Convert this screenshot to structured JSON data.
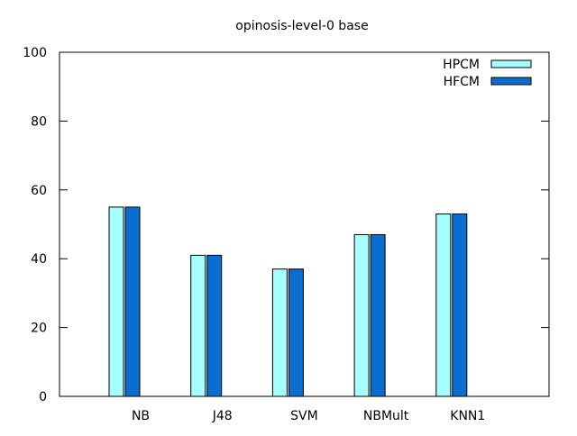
{
  "chart_data": {
    "type": "bar",
    "title": "opinosis-level-0 base",
    "xlabel": "",
    "ylabel": "",
    "categories": [
      "NB",
      "J48",
      "SVM",
      "NBMult",
      "KNN1"
    ],
    "series": [
      {
        "name": "HPCM",
        "values": [
          55,
          41,
          37,
          47,
          53
        ],
        "color": "#a6ffff"
      },
      {
        "name": "HFCM",
        "values": [
          55,
          41,
          37,
          47,
          53
        ],
        "color": "#0a6ed0"
      }
    ],
    "ylim": [
      0,
      100
    ],
    "yticks": [
      0,
      20,
      40,
      60,
      80,
      100
    ],
    "grid": false,
    "legend_position": "top-right"
  }
}
